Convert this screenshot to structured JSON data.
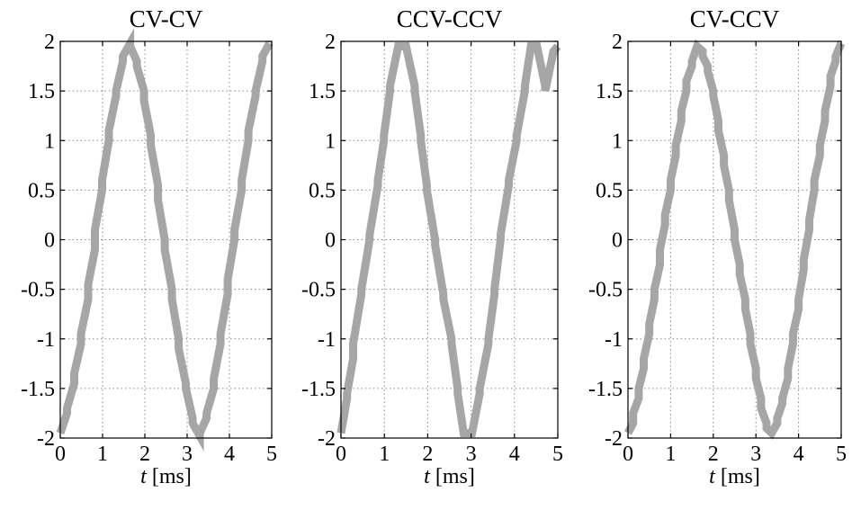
{
  "colors": {
    "wave": "#a6a6a6"
  },
  "chart_data": [
    {
      "type": "line",
      "title": "CV-CV",
      "xlabel_var": "t",
      "xlabel_unit": "[ms]",
      "xlim": [
        0,
        5
      ],
      "ylim": [
        -2,
        2
      ],
      "xticks": [
        "0",
        "1",
        "2",
        "3",
        "4",
        "5"
      ],
      "yticks": [
        "2",
        "1.5",
        "1",
        "0.5",
        "0",
        "-0.5",
        "-1",
        "-1.5",
        "-2"
      ],
      "grid": true,
      "series": [
        {
          "x": [
            0,
            0.16,
            0.16,
            0.33,
            0.33,
            0.49,
            0.49,
            0.66,
            0.66,
            0.82,
            0.82,
            0.99,
            0.99,
            1.15,
            1.15,
            1.32,
            1.32,
            1.48,
            1.48,
            1.65,
            1.65,
            1.81,
            1.81,
            1.98,
            1.98,
            2.14,
            2.14,
            2.31,
            2.31,
            2.47,
            2.47,
            2.64,
            2.64,
            2.8,
            2.8,
            2.97,
            2.97,
            3.13,
            3.13,
            3.3,
            3.3,
            3.46,
            3.46,
            3.63,
            3.63,
            3.79,
            3.79,
            3.96,
            3.96,
            4.12,
            4.12,
            4.29,
            4.29,
            4.45,
            4.45,
            4.62,
            4.62,
            4.78,
            4.78,
            4.95
          ],
          "y": [
            -1.95,
            -1.75,
            -1.7,
            -1.45,
            -1.35,
            -1.05,
            -0.95,
            -0.6,
            -0.45,
            -0.1,
            0.1,
            0.5,
            0.6,
            1.0,
            1.1,
            1.45,
            1.5,
            1.8,
            1.85,
            1.98,
            1.95,
            1.8,
            1.75,
            1.5,
            1.4,
            1.05,
            0.95,
            0.55,
            0.4,
            0.0,
            -0.1,
            -0.5,
            -0.6,
            -1.0,
            -1.1,
            -1.45,
            -1.5,
            -1.8,
            -1.85,
            -1.98,
            -1.95,
            -1.8,
            -1.75,
            -1.5,
            -1.4,
            -1.05,
            -0.95,
            -0.55,
            -0.4,
            0.0,
            0.1,
            0.5,
            0.6,
            1.0,
            1.1,
            1.45,
            1.5,
            1.8,
            1.85,
            1.98
          ]
        }
      ]
    },
    {
      "type": "line",
      "title": "CCV-CCV",
      "xlabel_var": "t",
      "xlabel_unit": "[ms]",
      "xlim": [
        0,
        5
      ],
      "ylim": [
        -2,
        2
      ],
      "xticks": [
        "0",
        "1",
        "2",
        "3",
        "4",
        "5"
      ],
      "yticks": [
        "2",
        "1.5",
        "1",
        "0.5",
        "0",
        "-0.5",
        "-1",
        "-1.5",
        "-2"
      ],
      "grid": true,
      "series": [
        {
          "x": [
            0,
            0.14,
            0.14,
            0.28,
            0.28,
            0.47,
            0.47,
            0.66,
            0.66,
            0.85,
            0.85,
            0.99,
            0.99,
            1.13,
            1.13,
            1.32,
            1.32,
            1.5,
            1.5,
            1.7,
            1.7,
            1.84,
            1.84,
            1.98,
            1.98,
            2.17,
            2.17,
            2.36,
            2.36,
            2.55,
            2.55,
            2.69,
            2.69,
            2.83,
            2.83,
            3.02,
            3.02,
            3.2,
            3.2,
            3.4,
            3.4,
            3.54,
            3.54,
            3.68,
            3.68,
            3.87,
            3.87,
            4.05,
            4.05,
            4.24,
            4.24,
            4.38,
            4.38,
            4.52,
            4.52,
            4.71,
            4.71,
            4.9,
            4.9,
            5.0
          ],
          "y": [
            -1.95,
            -1.6,
            -1.55,
            -1.2,
            -1.05,
            -0.55,
            -0.5,
            0.0,
            0.05,
            0.55,
            0.6,
            1.0,
            1.05,
            1.5,
            1.55,
            1.95,
            1.95,
            1.95,
            1.95,
            1.55,
            1.5,
            1.05,
            1.0,
            0.55,
            0.5,
            0.0,
            -0.05,
            -0.55,
            -0.6,
            -1.0,
            -1.05,
            -1.5,
            -1.55,
            -1.95,
            -1.95,
            -1.95,
            -1.95,
            -1.55,
            -1.5,
            -1.05,
            -1.0,
            -0.55,
            -0.5,
            0.0,
            0.05,
            0.55,
            0.6,
            1.0,
            1.05,
            1.5,
            1.55,
            1.95,
            1.95,
            1.95,
            1.95,
            1.55,
            1.5,
            1.9,
            1.9,
            1.95
          ]
        }
      ]
    },
    {
      "type": "line",
      "title": "CV-CCV",
      "xlabel_var": "t",
      "xlabel_unit": "[ms]",
      "xlim": [
        0,
        5
      ],
      "ylim": [
        -2,
        2
      ],
      "xticks": [
        "0",
        "1",
        "2",
        "3",
        "4",
        "5"
      ],
      "yticks": [
        "2",
        "1.5",
        "1",
        "0.5",
        "0",
        "-0.5",
        "-1",
        "-1.5",
        "-2"
      ],
      "grid": true,
      "series": [
        {
          "x": [
            0,
            0.12,
            0.12,
            0.25,
            0.25,
            0.37,
            0.37,
            0.5,
            0.5,
            0.62,
            0.62,
            0.75,
            0.75,
            0.87,
            0.87,
            1.0,
            1.0,
            1.12,
            1.12,
            1.25,
            1.25,
            1.37,
            1.37,
            1.5,
            1.5,
            1.62,
            1.62,
            1.75,
            1.75,
            1.87,
            1.87,
            2.0,
            2.0,
            2.12,
            2.12,
            2.25,
            2.25,
            2.37,
            2.37,
            2.5,
            2.5,
            2.62,
            2.62,
            2.75,
            2.75,
            2.87,
            2.87,
            3.0,
            3.0,
            3.12,
            3.12,
            3.25,
            3.25,
            3.37,
            3.37,
            3.5,
            3.5,
            3.62,
            3.62,
            3.75,
            3.75,
            3.87,
            3.87,
            4.0,
            4.0,
            4.12,
            4.12,
            4.25,
            4.25,
            4.37,
            4.37,
            4.5,
            4.5,
            4.62,
            4.62,
            4.75,
            4.75,
            4.87,
            4.87,
            5.0
          ],
          "y": [
            -1.95,
            -1.85,
            -1.75,
            -1.6,
            -1.5,
            -1.3,
            -1.2,
            -0.95,
            -0.85,
            -0.6,
            -0.5,
            -0.25,
            -0.1,
            0.15,
            0.25,
            0.5,
            0.6,
            0.85,
            0.95,
            1.2,
            1.3,
            1.5,
            1.6,
            1.75,
            1.8,
            1.95,
            1.95,
            1.9,
            1.85,
            1.75,
            1.7,
            1.5,
            1.45,
            1.2,
            1.1,
            0.85,
            0.75,
            0.5,
            0.4,
            0.1,
            0.0,
            -0.25,
            -0.35,
            -0.6,
            -0.7,
            -0.95,
            -1.05,
            -1.3,
            -1.4,
            -1.6,
            -1.7,
            -1.85,
            -1.9,
            -1.95,
            -1.95,
            -1.85,
            -1.8,
            -1.65,
            -1.6,
            -1.4,
            -1.3,
            -1.05,
            -0.95,
            -0.7,
            -0.6,
            -0.3,
            -0.2,
            0.1,
            0.2,
            0.5,
            0.6,
            0.85,
            0.95,
            1.2,
            1.3,
            1.55,
            1.65,
            1.8,
            1.85,
            1.98
          ]
        }
      ]
    }
  ]
}
